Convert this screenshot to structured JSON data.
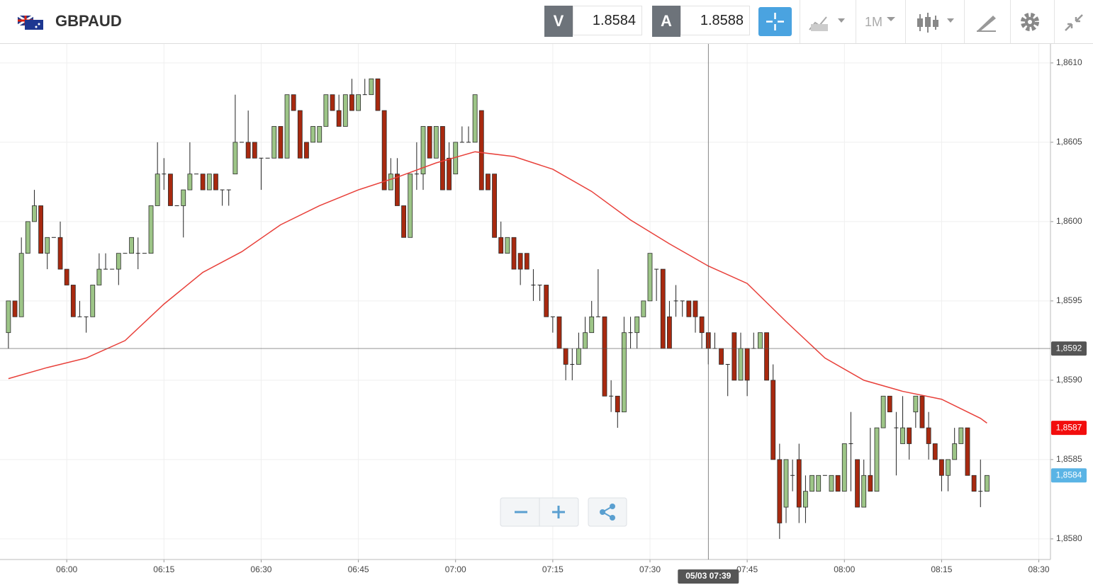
{
  "header": {
    "symbol": "GBPAUD",
    "bid_label": "V",
    "bid": "1.8584",
    "ask_label": "A",
    "ask": "1.8588",
    "timeframe": "1M"
  },
  "chart_data": {
    "type": "candlestick",
    "x": [
      351,
      352,
      353,
      354,
      355,
      356,
      357,
      358,
      359,
      360,
      361,
      362,
      363,
      364,
      365,
      366,
      367,
      368,
      369,
      370,
      371,
      372,
      373,
      374,
      375,
      376,
      377,
      378,
      379,
      380,
      381,
      382,
      383,
      384,
      385,
      386,
      387,
      388,
      389,
      390,
      391,
      392,
      393,
      394,
      395,
      396,
      397,
      398,
      399,
      400,
      401,
      402,
      403,
      404,
      405,
      406,
      407,
      408,
      409,
      410,
      411,
      412,
      413,
      414,
      415,
      416,
      417,
      418,
      419,
      420,
      421,
      422,
      423,
      424,
      425,
      426,
      427,
      428,
      429,
      430,
      431,
      432,
      433,
      434,
      435,
      436,
      437,
      438,
      439,
      440,
      441,
      442,
      443,
      444,
      445,
      446,
      447,
      448,
      449,
      450,
      451,
      452,
      453,
      454,
      455,
      456,
      457,
      458,
      459,
      460,
      461,
      462,
      463,
      464,
      465,
      466,
      467,
      468,
      469,
      470,
      471,
      472,
      473,
      474,
      475,
      476,
      477,
      478,
      479,
      480,
      481,
      482,
      483,
      484,
      485,
      486,
      487,
      488,
      489,
      490,
      491,
      492,
      493,
      494,
      495,
      496,
      497,
      498,
      499,
      500,
      501,
      502
    ],
    "open": [
      1.8593,
      1.8595,
      1.8594,
      1.8598,
      1.86,
      1.8601,
      1.8598,
      1.8599,
      1.8599,
      1.8597,
      1.8596,
      1.8594,
      1.8594,
      1.8594,
      1.8596,
      1.8597,
      1.8597,
      1.8597,
      1.8598,
      1.8598,
      1.8598,
      1.8598,
      1.8598,
      1.8601,
      1.8603,
      1.8603,
      1.8601,
      1.8601,
      1.8602,
      1.8603,
      1.8603,
      1.8602,
      1.8603,
      1.8602,
      1.8602,
      1.8603,
      1.8605,
      1.8605,
      1.8605,
      1.8604,
      1.8604,
      1.8604,
      1.8606,
      1.8604,
      1.8608,
      1.8607,
      1.8605,
      1.8605,
      1.8605,
      1.8606,
      1.8608,
      1.8607,
      1.8606,
      1.8608,
      1.8607,
      1.8608,
      1.8608,
      1.8609,
      1.8607,
      1.8602,
      1.8603,
      1.8601,
      1.8599,
      1.8603,
      1.8603,
      1.8606,
      1.8604,
      1.8606,
      1.8604,
      1.8603,
      1.8605,
      1.8605,
      1.8605,
      1.8607,
      1.8603,
      1.8603,
      1.8599,
      1.8598,
      1.8599,
      1.8598,
      1.8598,
      1.8596,
      1.8596,
      1.8596,
      1.8594,
      1.8594,
      1.8592,
      1.8591,
      1.8591,
      1.8592,
      1.8593,
      1.8594,
      1.8594,
      1.8589,
      1.8589,
      1.8588,
      1.8593,
      1.8593,
      1.8594,
      1.8595,
      1.8597,
      1.8597,
      1.8594,
      1.8595,
      1.8595,
      1.8595,
      1.8595,
      1.8594,
      1.8593,
      1.8592,
      1.8592,
      1.8591,
      1.8593,
      1.859,
      1.8592,
      1.8592,
      1.8592,
      1.8593,
      1.859,
      1.8585,
      1.8582,
      1.8584,
      1.8585,
      1.8582,
      1.8583,
      1.8583,
      1.8584,
      1.8583,
      1.8584,
      1.8583,
      1.8586,
      1.8585,
      1.8582,
      1.8584,
      1.8583,
      1.8587,
      1.8589,
      1.8587,
      1.8586,
      1.8587,
      1.8588,
      1.8589,
      1.8587,
      1.8586,
      1.8585,
      1.8584,
      1.8585,
      1.8586,
      1.8587,
      1.8584,
      1.8583,
      1.8583
    ],
    "high": [
      1.8595,
      1.8595,
      1.8599,
      1.86,
      1.8602,
      1.8601,
      1.8599,
      1.8599,
      1.86,
      1.8597,
      1.8596,
      1.8595,
      1.8594,
      1.8596,
      1.8598,
      1.8598,
      1.8597,
      1.8598,
      1.8598,
      1.8599,
      1.8599,
      1.8598,
      1.8601,
      1.8605,
      1.8604,
      1.8603,
      1.8601,
      1.8602,
      1.8605,
      1.8603,
      1.8603,
      1.8603,
      1.8603,
      1.8602,
      1.8602,
      1.8608,
      1.8605,
      1.8607,
      1.8605,
      1.8604,
      1.8604,
      1.8606,
      1.8606,
      1.8608,
      1.8608,
      1.8607,
      1.8605,
      1.8606,
      1.8606,
      1.8608,
      1.8608,
      1.8608,
      1.8608,
      1.8609,
      1.8608,
      1.8609,
      1.8609,
      1.8609,
      1.8607,
      1.8604,
      1.8604,
      1.8601,
      1.8603,
      1.8605,
      1.8606,
      1.8606,
      1.8606,
      1.8606,
      1.8605,
      1.8605,
      1.8606,
      1.8606,
      1.8608,
      1.8607,
      1.8603,
      1.8603,
      1.86,
      1.8599,
      1.8599,
      1.8598,
      1.8598,
      1.8597,
      1.8596,
      1.8596,
      1.8594,
      1.8594,
      1.8592,
      1.8592,
      1.8593,
      1.8594,
      1.8595,
      1.8597,
      1.8594,
      1.859,
      1.8589,
      1.8594,
      1.8594,
      1.8594,
      1.8595,
      1.8598,
      1.8597,
      1.8597,
      1.8595,
      1.8596,
      1.8595,
      1.8595,
      1.8595,
      1.8594,
      1.8593,
      1.8593,
      1.8592,
      1.8591,
      1.8593,
      1.8593,
      1.8592,
      1.8593,
      1.8593,
      1.8593,
      1.8591,
      1.8586,
      1.8585,
      1.8585,
      1.8586,
      1.8584,
      1.8584,
      1.8584,
      1.8584,
      1.8584,
      1.8584,
      1.8586,
      1.8588,
      1.8585,
      1.8585,
      1.8587,
      1.8587,
      1.8589,
      1.8589,
      1.8588,
      1.8589,
      1.8587,
      1.8589,
      1.8589,
      1.8588,
      1.8586,
      1.8585,
      1.8585,
      1.8587,
      1.8587,
      1.8587,
      1.8584,
      1.8585,
      1.8584
    ],
    "low": [
      1.8592,
      1.8594,
      1.8594,
      1.8598,
      1.86,
      1.8598,
      1.8597,
      1.8599,
      1.8597,
      1.8596,
      1.8594,
      1.8594,
      1.8593,
      1.8594,
      1.8596,
      1.8597,
      1.8597,
      1.8596,
      1.8598,
      1.8598,
      1.8597,
      1.8598,
      1.8598,
      1.8601,
      1.8602,
      1.8601,
      1.8601,
      1.8599,
      1.8602,
      1.8603,
      1.8602,
      1.8602,
      1.8602,
      1.8601,
      1.8601,
      1.8603,
      1.8605,
      1.8604,
      1.8604,
      1.8602,
      1.8604,
      1.8604,
      1.8604,
      1.8604,
      1.8607,
      1.8604,
      1.8604,
      1.8605,
      1.8605,
      1.8606,
      1.8607,
      1.8606,
      1.8606,
      1.8607,
      1.8607,
      1.8608,
      1.8608,
      1.8607,
      1.8602,
      1.8602,
      1.8601,
      1.8599,
      1.8599,
      1.8602,
      1.8602,
      1.8604,
      1.8604,
      1.8602,
      1.8602,
      1.8603,
      1.8605,
      1.8605,
      1.8605,
      1.8602,
      1.8602,
      1.8599,
      1.8598,
      1.8598,
      1.8597,
      1.8596,
      1.8597,
      1.8595,
      1.8595,
      1.8594,
      1.8593,
      1.8592,
      1.859,
      1.859,
      1.8591,
      1.8592,
      1.8593,
      1.8594,
      1.8589,
      1.8588,
      1.8587,
      1.8588,
      1.8592,
      1.8592,
      1.8594,
      1.8595,
      1.8595,
      1.8592,
      1.8592,
      1.8594,
      1.8594,
      1.8594,
      1.8593,
      1.8592,
      1.8591,
      1.8592,
      1.8591,
      1.8589,
      1.859,
      1.859,
      1.8589,
      1.8592,
      1.8592,
      1.859,
      1.8585,
      1.858,
      1.8581,
      1.8583,
      1.8581,
      1.8581,
      1.8583,
      1.8583,
      1.8584,
      1.8583,
      1.8583,
      1.8583,
      1.8583,
      1.8582,
      1.8582,
      1.8583,
      1.8583,
      1.8587,
      1.8588,
      1.8584,
      1.8586,
      1.8585,
      1.8587,
      1.8587,
      1.8585,
      1.8585,
      1.8583,
      1.8583,
      1.8585,
      1.8586,
      1.8584,
      1.8583,
      1.8582,
      1.8583
    ],
    "close": [
      1.8595,
      1.8594,
      1.8598,
      1.86,
      1.8601,
      1.8598,
      1.8599,
      1.8599,
      1.8597,
      1.8596,
      1.8594,
      1.8594,
      1.8594,
      1.8596,
      1.8597,
      1.8597,
      1.8597,
      1.8598,
      1.8598,
      1.8599,
      1.8598,
      1.8598,
      1.8601,
      1.8603,
      1.8603,
      1.8601,
      1.8601,
      1.8602,
      1.8603,
      1.8603,
      1.8602,
      1.8603,
      1.8602,
      1.8602,
      1.8602,
      1.8605,
      1.8605,
      1.8604,
      1.8604,
      1.8604,
      1.8604,
      1.8606,
      1.8604,
      1.8608,
      1.8607,
      1.8604,
      1.8604,
      1.8606,
      1.8606,
      1.8608,
      1.8607,
      1.8606,
      1.8608,
      1.8607,
      1.8608,
      1.8608,
      1.8609,
      1.8607,
      1.8602,
      1.8603,
      1.8601,
      1.8599,
      1.8603,
      1.8603,
      1.8606,
      1.8604,
      1.8606,
      1.8602,
      1.8602,
      1.8605,
      1.8605,
      1.8605,
      1.8608,
      1.8602,
      1.8602,
      1.8599,
      1.8598,
      1.8599,
      1.8597,
      1.8597,
      1.8597,
      1.8596,
      1.8596,
      1.8594,
      1.8594,
      1.8592,
      1.8591,
      1.8591,
      1.8592,
      1.8593,
      1.8594,
      1.8594,
      1.8589,
      1.8589,
      1.8588,
      1.8593,
      1.8593,
      1.8594,
      1.8595,
      1.8598,
      1.8597,
      1.8592,
      1.8592,
      1.8595,
      1.8595,
      1.8594,
      1.8594,
      1.8593,
      1.8592,
      1.8592,
      1.8591,
      1.8591,
      1.859,
      1.8592,
      1.859,
      1.8592,
      1.8593,
      1.859,
      1.8585,
      1.8581,
      1.8585,
      1.8584,
      1.8582,
      1.8583,
      1.8584,
      1.8584,
      1.8584,
      1.8584,
      1.8583,
      1.8586,
      1.8586,
      1.8582,
      1.8584,
      1.8583,
      1.8587,
      1.8589,
      1.8588,
      1.8587,
      1.8587,
      1.8586,
      1.8589,
      1.8587,
      1.8586,
      1.8585,
      1.8584,
      1.8585,
      1.8586,
      1.8587,
      1.8584,
      1.8583,
      1.8583,
      1.8584
    ],
    "up_color": "#9dc587",
    "down_color": "#a8290f",
    "moving_average": {
      "color": "#e8403a",
      "x": [
        351,
        357,
        363,
        369,
        375,
        381,
        387,
        393,
        399,
        405,
        411,
        417,
        423,
        429,
        435,
        441,
        447,
        453,
        459,
        465,
        471,
        477,
        483,
        489,
        495,
        501,
        502
      ],
      "values": [
        1.85901,
        1.85908,
        1.85914,
        1.85925,
        1.85948,
        1.85968,
        1.85981,
        1.85998,
        1.8601,
        1.8602,
        1.86028,
        1.86037,
        1.86044,
        1.86041,
        1.86033,
        1.86019,
        1.86001,
        1.85986,
        1.85972,
        1.85961,
        1.85937,
        1.85914,
        1.859,
        1.85893,
        1.85888,
        1.85876,
        1.85873
      ]
    },
    "xlim": [
      349.7,
      511.8
    ],
    "xticks": [
      {
        "value": 360,
        "label": "06:00"
      },
      {
        "value": 375,
        "label": "06:15"
      },
      {
        "value": 390,
        "label": "06:30"
      },
      {
        "value": 405,
        "label": "06:45"
      },
      {
        "value": 420,
        "label": "07:00"
      },
      {
        "value": 435,
        "label": "07:15"
      },
      {
        "value": 450,
        "label": "07:30"
      },
      {
        "value": 465,
        "label": "07:45"
      },
      {
        "value": 480,
        "label": "08:00"
      },
      {
        "value": 495,
        "label": "08:15"
      },
      {
        "value": 510,
        "label": "08:30"
      }
    ],
    "ylim": [
      1.85787,
      1.86112
    ],
    "yticks": [
      {
        "value": 1.858,
        "label": "1,8580"
      },
      {
        "value": 1.8585,
        "label": "1,8585"
      },
      {
        "value": 1.859,
        "label": "1,8590"
      },
      {
        "value": 1.8595,
        "label": "1,8595"
      },
      {
        "value": 1.86,
        "label": "1,8600"
      },
      {
        "value": 1.8605,
        "label": "1,8605"
      },
      {
        "value": 1.861,
        "label": "1,8610"
      }
    ],
    "grid": true,
    "crosshair": {
      "x": 459,
      "x_label": "05/03 07:39",
      "y": 1.8592,
      "y_label": "1,8592",
      "color": "#555555"
    },
    "price_markers": [
      {
        "value": 1.8587,
        "label": "1,8587",
        "color": "#f20d0d"
      },
      {
        "value": 1.8584,
        "label": "1,8584",
        "color": "#5ab4e5"
      }
    ]
  }
}
